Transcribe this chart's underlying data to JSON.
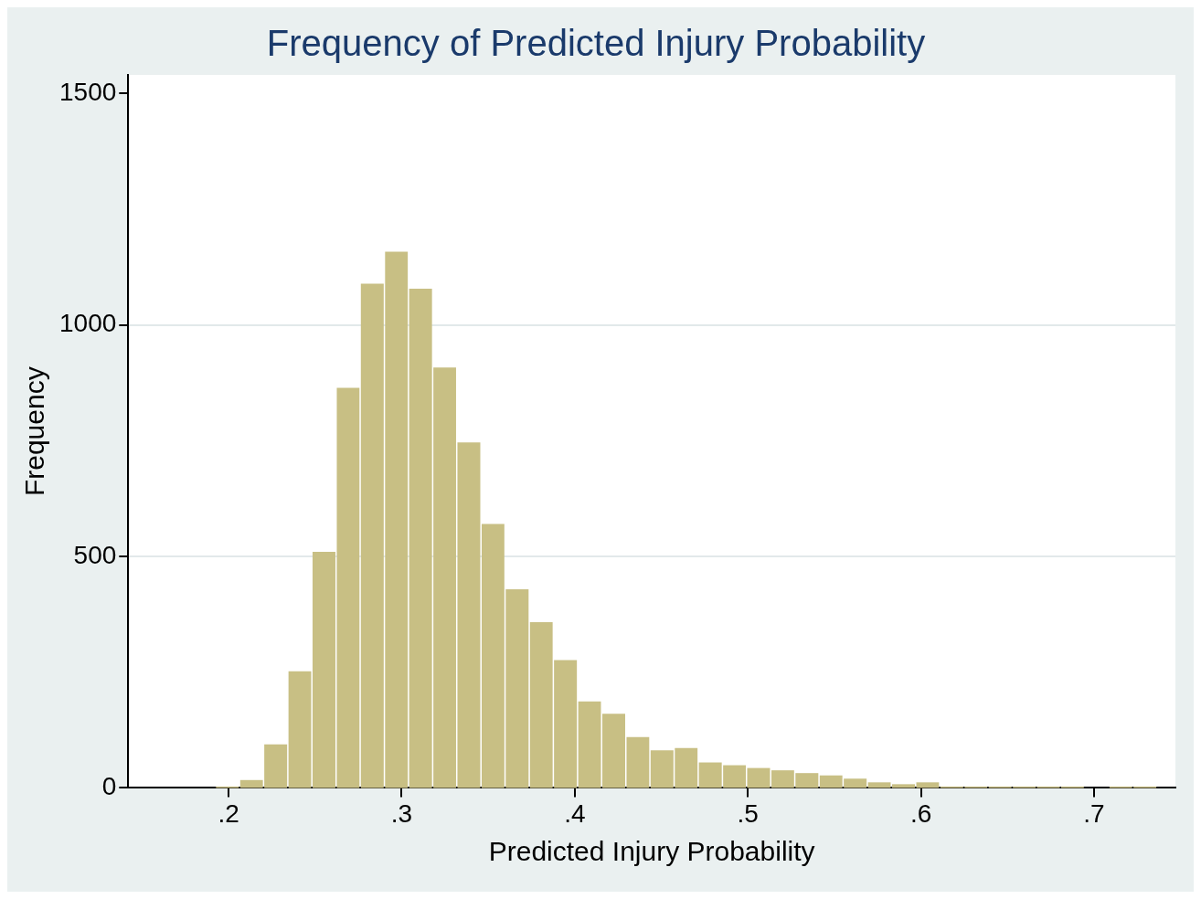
{
  "chart_data": {
    "type": "histogram",
    "title": "Frequency of Predicted Injury Probability",
    "xlabel": "Predicted Injury Probability",
    "ylabel": "Frequency",
    "bins": [
      0.1923,
      0.2063,
      0.2202,
      0.2342,
      0.2481,
      0.2621,
      0.276,
      0.29,
      0.3039,
      0.3179,
      0.3318,
      0.3458,
      0.3597,
      0.3737,
      0.3876,
      0.4016,
      0.4155,
      0.4295,
      0.4434,
      0.4574,
      0.4713,
      0.4853,
      0.4992,
      0.5132,
      0.5271,
      0.5411,
      0.555,
      0.569,
      0.5829,
      0.5969,
      0.6108,
      0.6248,
      0.6387,
      0.6527,
      0.6666,
      0.6806,
      0.6945,
      0.7085,
      0.7224,
      0.7364
    ],
    "values": [
      3,
      17,
      94,
      252,
      510,
      864,
      1089,
      1158,
      1078,
      908,
      746,
      570,
      429,
      358,
      276,
      187,
      160,
      110,
      81,
      86,
      55,
      49,
      43,
      38,
      32,
      27,
      20,
      12,
      8,
      12,
      3,
      3,
      3,
      3,
      3,
      3,
      0,
      3,
      3
    ],
    "color": "#c8bf84",
    "xlim": [
      0.142,
      0.747
    ],
    "xticks": [
      {
        "value": 0.2,
        "label": ".2"
      },
      {
        "value": 0.3,
        "label": ".3"
      },
      {
        "value": 0.4,
        "label": ".4"
      },
      {
        "value": 0.5,
        "label": ".5"
      },
      {
        "value": 0.6,
        "label": ".6"
      },
      {
        "value": 0.7,
        "label": ".7"
      }
    ],
    "ylim": [
      0,
      1540
    ],
    "yticks": [
      0,
      500,
      1000,
      1500
    ],
    "grid": "y"
  }
}
